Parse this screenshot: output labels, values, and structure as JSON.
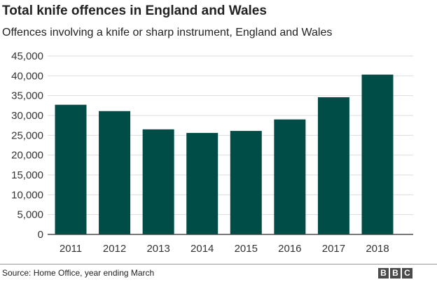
{
  "header": {
    "title": "Total knife offences in England and Wales",
    "subtitle": "Offences involving a knife or sharp instrument, England and Wales"
  },
  "footer": {
    "source": "Source: Home Office, year ending March",
    "logo_letters": [
      "B",
      "B",
      "C"
    ]
  },
  "chart_data": {
    "type": "bar",
    "title": "Total knife offences in England and Wales",
    "subtitle": "Offences involving a knife or sharp instrument, England and Wales",
    "categories": [
      "2011",
      "2012",
      "2013",
      "2014",
      "2015",
      "2016",
      "2017",
      "2018"
    ],
    "values": [
      32700,
      31100,
      26500,
      25600,
      26100,
      29000,
      34600,
      40300
    ],
    "yticks": [
      0,
      5000,
      10000,
      15000,
      20000,
      25000,
      30000,
      35000,
      40000,
      45000
    ],
    "ytick_labels": [
      "0",
      "5,000",
      "10,000",
      "15,000",
      "20,000",
      "25,000",
      "30,000",
      "35,000",
      "40,000",
      "45,000"
    ],
    "ylim": [
      0,
      45000
    ],
    "xlabel": "",
    "ylabel": "",
    "grid": true,
    "bar_color": "#004d47",
    "grid_color": "#dddddd"
  }
}
